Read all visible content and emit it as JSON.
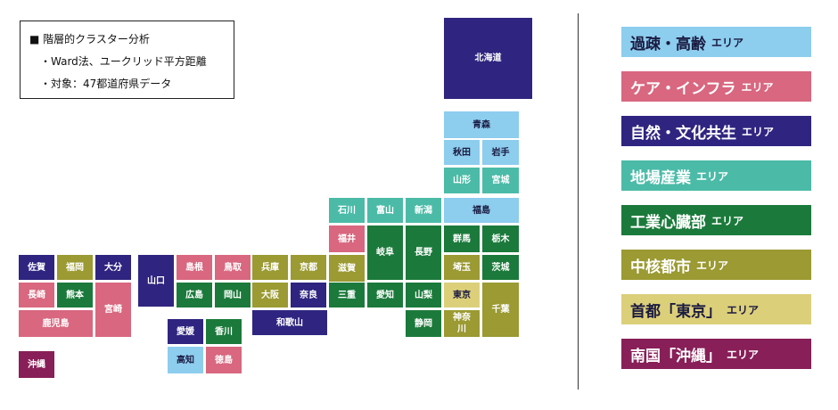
{
  "note": {
    "title": "■ 階層的クラスター分析",
    "lines": [
      "・Ward法、ユークリッド平方距離",
      "・対象：47都道府県データ"
    ]
  },
  "legend": [
    {
      "name": "過疎・高齢",
      "suffix": "エリア",
      "color": "#8dcdee"
    },
    {
      "name": "ケア・インフラ",
      "suffix": "エリア",
      "color": "#d8677f"
    },
    {
      "name": "自然・文化共生",
      "suffix": "エリア",
      "color": "#2f2580"
    },
    {
      "name": "地場産業",
      "suffix": "エリア",
      "color": "#4bbba8"
    },
    {
      "name": "工業心臓部",
      "suffix": "エリア",
      "color": "#1b7a3b"
    },
    {
      "name": "中核都市",
      "suffix": "エリア",
      "color": "#9b9a33"
    },
    {
      "name": "首都「東京」",
      "suffix": "エリア",
      "color": "#dccf7a"
    },
    {
      "name": "南国「沖縄」",
      "suffix": "エリア",
      "color": "#881f58"
    }
  ],
  "prefectures": [
    {
      "label": "北海道",
      "cluster": 2
    },
    {
      "label": "青森",
      "cluster": 0
    },
    {
      "label": "秋田",
      "cluster": 0
    },
    {
      "label": "岩手",
      "cluster": 0
    },
    {
      "label": "山形",
      "cluster": 3
    },
    {
      "label": "宮城",
      "cluster": 3
    },
    {
      "label": "石川",
      "cluster": 3
    },
    {
      "label": "富山",
      "cluster": 3
    },
    {
      "label": "新潟",
      "cluster": 3
    },
    {
      "label": "福島",
      "cluster": 0
    },
    {
      "label": "福井",
      "cluster": 1
    },
    {
      "label": "岐阜",
      "cluster": 4
    },
    {
      "label": "長野",
      "cluster": 4
    },
    {
      "label": "群馬",
      "cluster": 4
    },
    {
      "label": "栃木",
      "cluster": 4
    },
    {
      "label": "埼玉",
      "cluster": 5
    },
    {
      "label": "茨城",
      "cluster": 4
    },
    {
      "label": "滋賀",
      "cluster": 5
    },
    {
      "label": "東京",
      "cluster": 6
    },
    {
      "label": "千葉",
      "cluster": 5
    },
    {
      "label": "三重",
      "cluster": 4
    },
    {
      "label": "愛知",
      "cluster": 4
    },
    {
      "label": "山梨",
      "cluster": 4
    },
    {
      "label": "静岡",
      "cluster": 4
    },
    {
      "label": "神奈川",
      "cluster": 5
    },
    {
      "label": "兵庫",
      "cluster": 5
    },
    {
      "label": "京都",
      "cluster": 5
    },
    {
      "label": "大阪",
      "cluster": 5
    },
    {
      "label": "奈良",
      "cluster": 2
    },
    {
      "label": "和歌山",
      "cluster": 2
    },
    {
      "label": "島根",
      "cluster": 1
    },
    {
      "label": "鳥取",
      "cluster": 1
    },
    {
      "label": "広島",
      "cluster": 4
    },
    {
      "label": "岡山",
      "cluster": 4
    },
    {
      "label": "山口",
      "cluster": 2
    },
    {
      "label": "愛媛",
      "cluster": 2
    },
    {
      "label": "香川",
      "cluster": 4
    },
    {
      "label": "高知",
      "cluster": 0
    },
    {
      "label": "徳島",
      "cluster": 1
    },
    {
      "label": "佐賀",
      "cluster": 2
    },
    {
      "label": "福岡",
      "cluster": 5
    },
    {
      "label": "大分",
      "cluster": 2
    },
    {
      "label": "長崎",
      "cluster": 1
    },
    {
      "label": "熊本",
      "cluster": 4
    },
    {
      "label": "鹿児島",
      "cluster": 1
    },
    {
      "label": "宮崎",
      "cluster": 1
    },
    {
      "label": "沖縄",
      "cluster": 7
    }
  ]
}
